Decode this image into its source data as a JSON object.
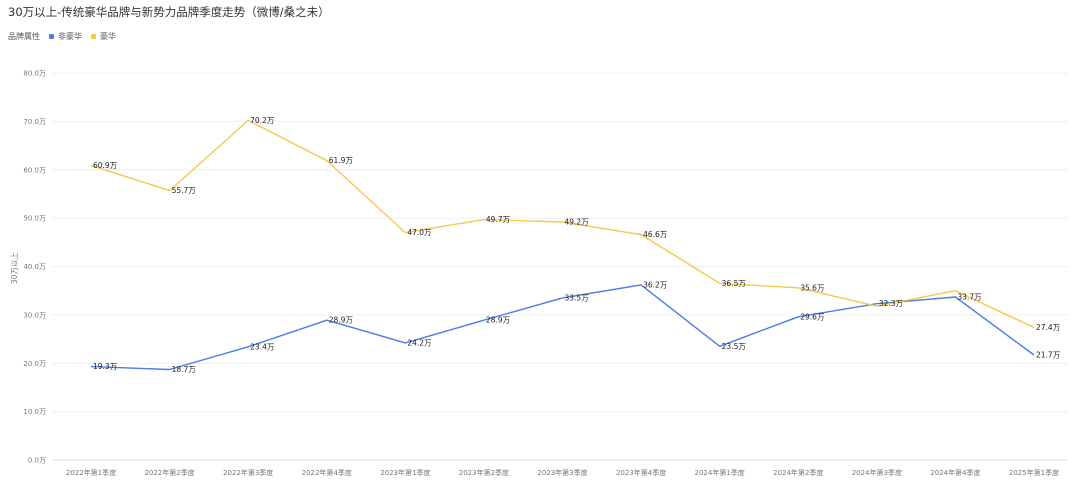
{
  "title": "30万以上-传统豪华品牌与新势力品牌季度走势（微博/桑之未）",
  "legend": {
    "title": "品牌属性",
    "items": [
      {
        "name": "非豪华",
        "color": "#4a7ee8"
      },
      {
        "name": "豪华",
        "color": "#f5c84c"
      }
    ]
  },
  "chart_data": {
    "type": "line",
    "title": "30万以上-传统豪华品牌与新势力品牌季度走势（微博/桑之未）",
    "xlabel": "",
    "ylabel": "30万以上",
    "ylim": [
      0,
      80
    ],
    "yticks": [
      0,
      10,
      20,
      30,
      40,
      50,
      60,
      70,
      80
    ],
    "ytick_labels": [
      "0.0万",
      "10.0万",
      "20.0万",
      "30.0万",
      "40.0万",
      "50.0万",
      "60.0万",
      "70.0万",
      "80.0万"
    ],
    "grid": true,
    "legend_position": "top-left",
    "categories": [
      "2022年第1季度",
      "2022年第2季度",
      "2022年第3季度",
      "2022年第4季度",
      "2023年第1季度",
      "2023年第2季度",
      "2023年第3季度",
      "2023年第4季度",
      "2024年第1季度",
      "2024年第2季度",
      "2024年第3季度",
      "2024年第4季度",
      "2025年第1季度"
    ],
    "series": [
      {
        "name": "非豪华",
        "color": "#4a7ee8",
        "values": [
          19.3,
          18.7,
          23.4,
          28.9,
          24.2,
          28.9,
          33.5,
          36.2,
          23.5,
          29.6,
          32.3,
          33.7,
          21.7
        ],
        "labels": [
          "19.3万",
          "18.7万",
          "23.4万",
          "28.9万",
          "24.2万",
          "28.9万",
          "33.5万",
          "36.2万",
          "23.5万",
          "29.6万",
          "32.3万",
          "33.7万",
          "21.7万"
        ]
      },
      {
        "name": "豪华",
        "color": "#f5c84c",
        "values": [
          60.9,
          55.7,
          70.2,
          61.9,
          47.0,
          49.7,
          49.2,
          46.6,
          36.5,
          35.6,
          31.8,
          35.0,
          27.4
        ],
        "labels": [
          "60.9万",
          "55.7万",
          "70.2万",
          "61.9万",
          "47.0万",
          "49.7万",
          "49.2万",
          "46.6万",
          "36.5万",
          "35.6万",
          "",
          "",
          "27.4万"
        ]
      }
    ]
  }
}
